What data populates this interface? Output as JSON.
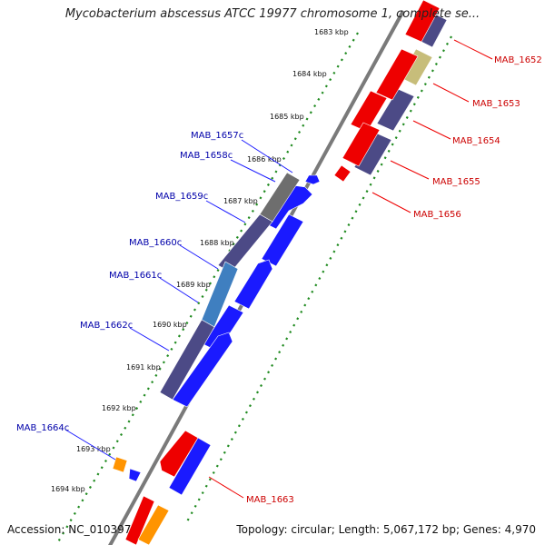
{
  "title": "Mycobacterium abscessus ATCC 19977 chromosome 1, complete se...",
  "accession": "Accession: NC_010397",
  "summary": "Topology: circular; Length: 5,067,172 bp; Genes: 4,970",
  "colors": {
    "backbone": "#7a7a7a",
    "cds_plus": "#0000ee",
    "cds_plus_fill": "#1a1aff",
    "cds_minus": "#ee0000",
    "feature_dark": "#4c4a86",
    "feature_gray": "#6e6e6e",
    "feature_khaki": "#c7bd7a",
    "feature_orange": "#ff9400",
    "feature_lightblue": "#3f7fc0",
    "ruler": "#228b22",
    "label_blue": "#0000aa",
    "label_red": "#cc0000"
  },
  "ruler_ticks": [
    "1683 kbp",
    "1684 kbp",
    "1685 kbp",
    "1686 kbp",
    "1687 kbp",
    "1688 kbp",
    "1689 kbp",
    "1690 kbp",
    "1691 kbp",
    "1692 kbp",
    "1693 kbp",
    "1694 kbp"
  ],
  "genes_left": [
    "MAB_1657c",
    "MAB_1658c",
    "MAB_1659c",
    "MAB_1660c",
    "MAB_1661c",
    "MAB_1662c",
    "MAB_1664c"
  ],
  "genes_right": [
    "MAB_1652",
    "MAB_1653",
    "MAB_1654",
    "MAB_1655",
    "MAB_1656",
    "MAB_1663"
  ]
}
